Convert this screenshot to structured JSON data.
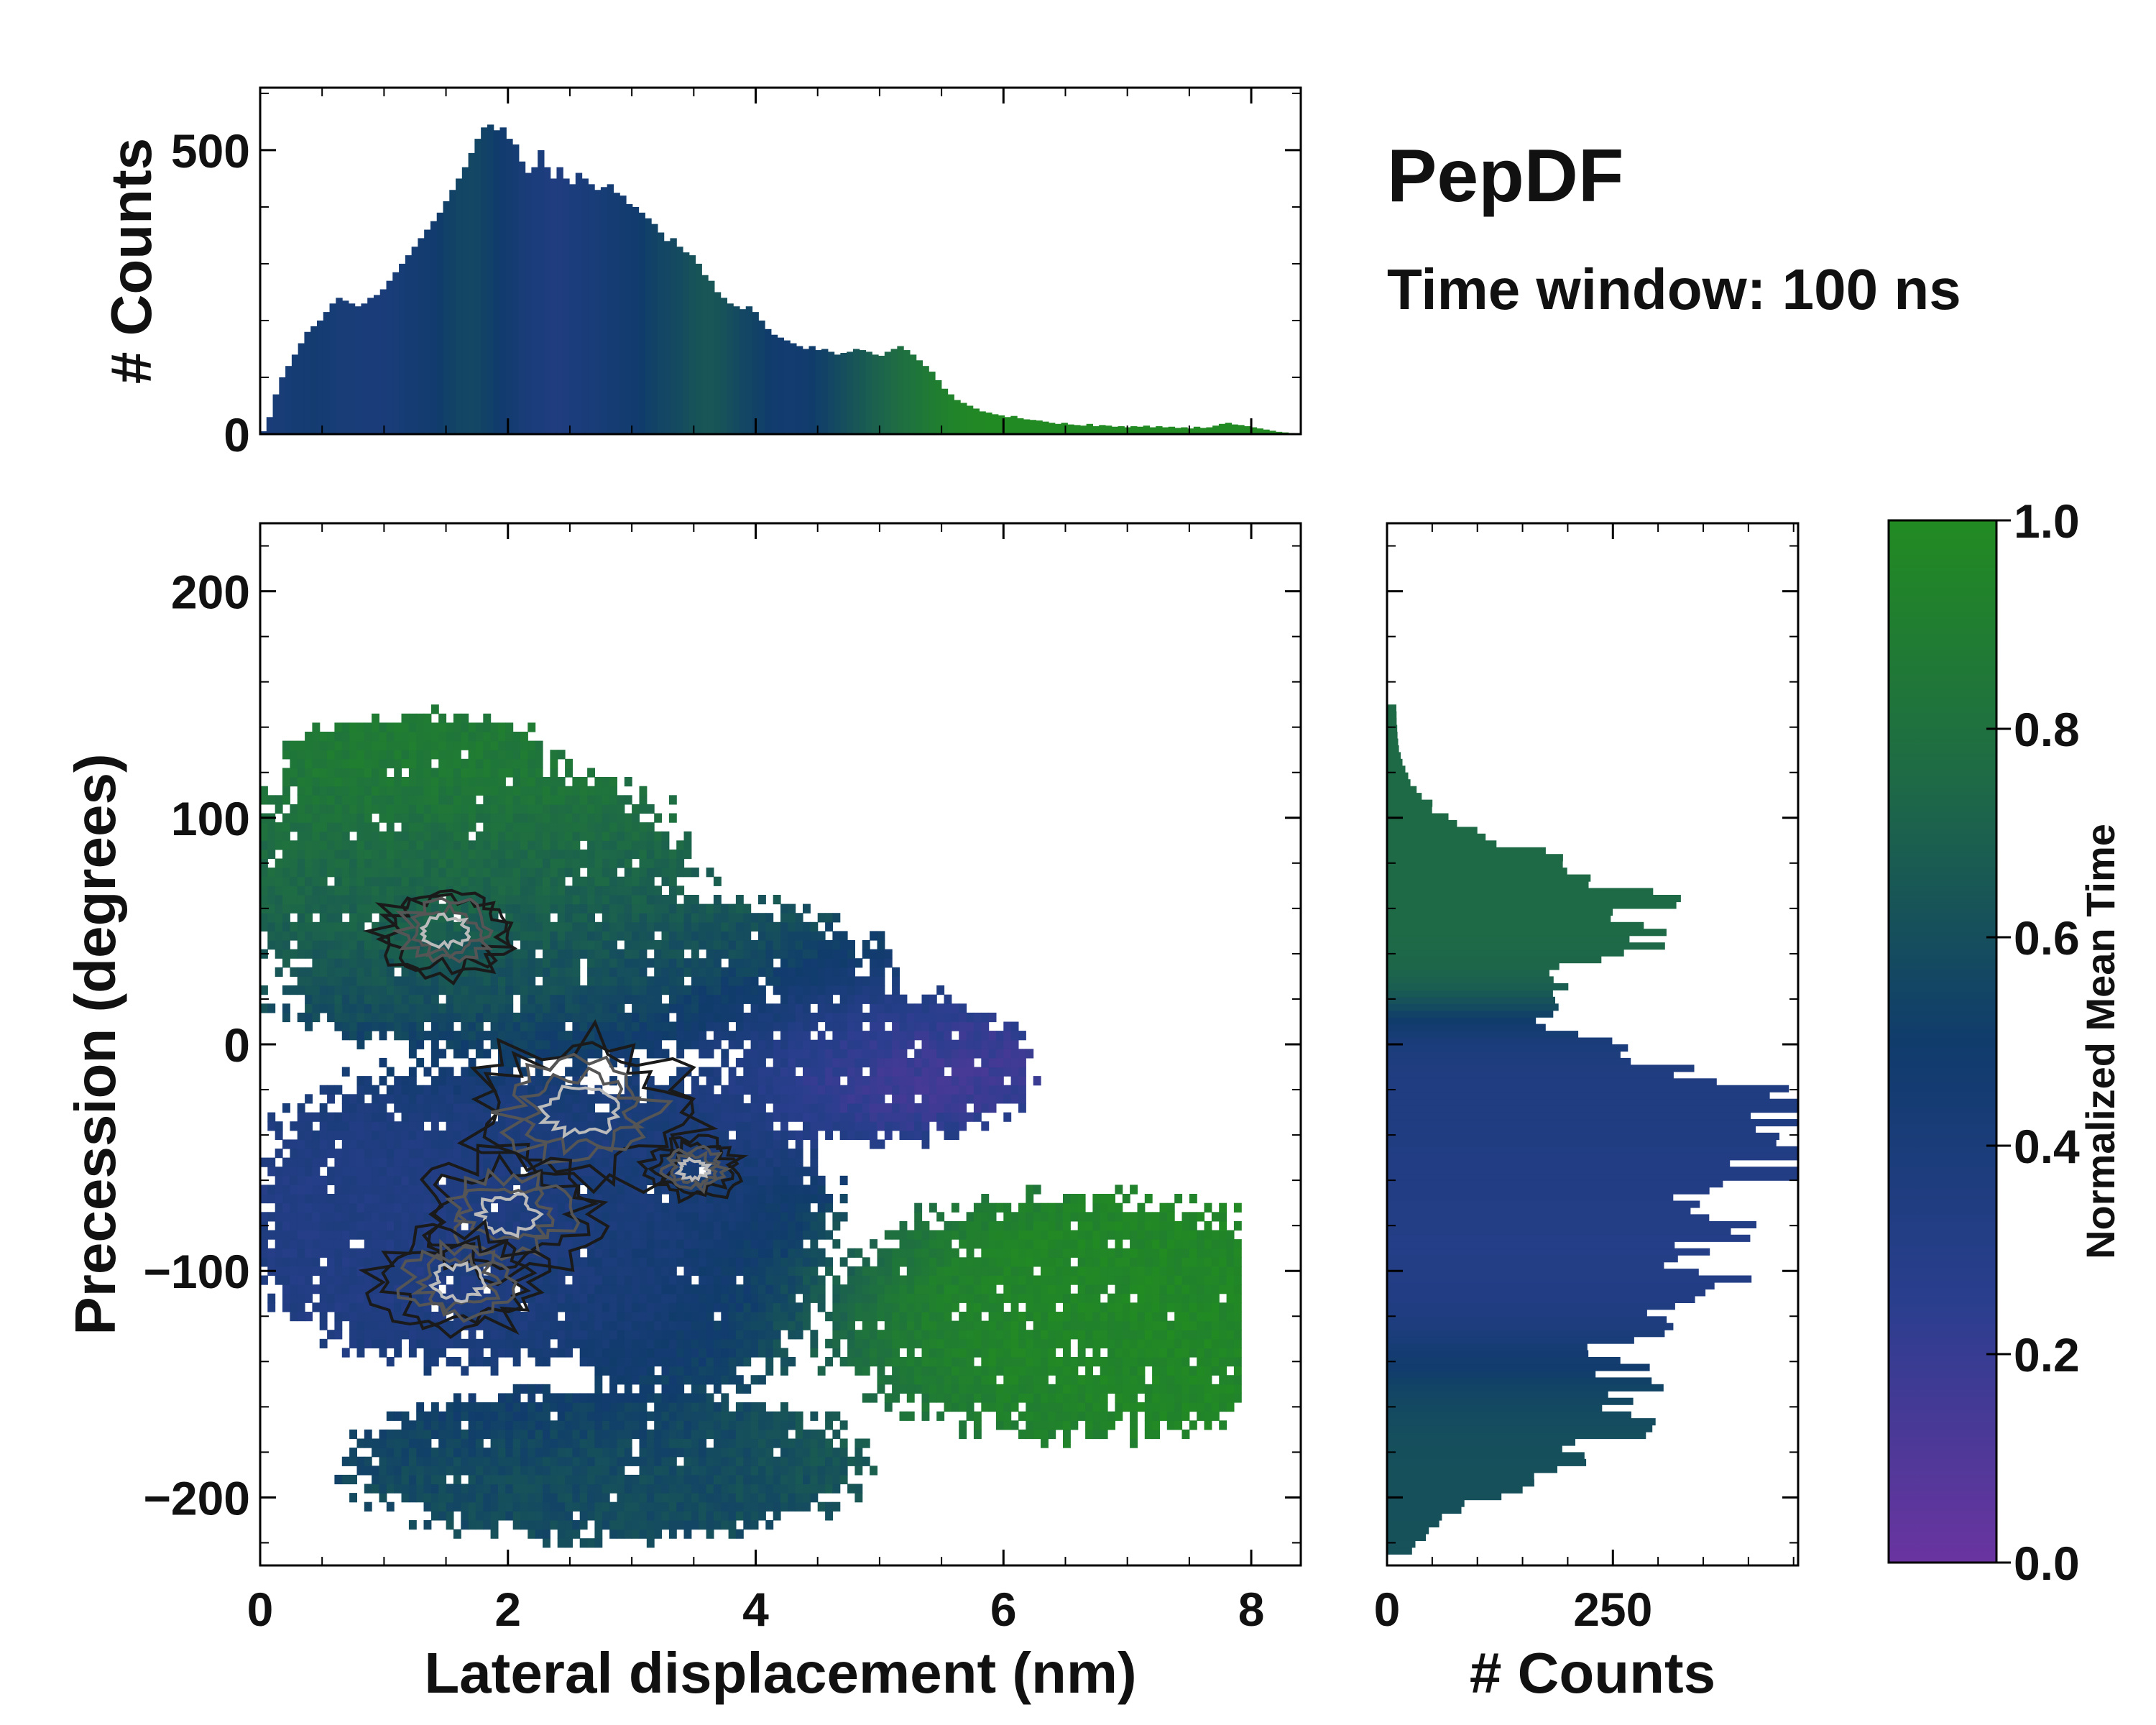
{
  "figure": {
    "title": "PepDF",
    "subtitle": "Time window: 100 ns"
  },
  "colors": {
    "colormap": [
      "#6a34a0",
      "#2a3e8e",
      "#103c6c",
      "#1e6a46",
      "#228b22"
    ],
    "contour_dark": "#1a1a1a",
    "contour_mid": "#555555",
    "contour_light": "#bbbbbb",
    "frame": "#000000"
  },
  "chart_data": [
    {
      "id": "top_histogram",
      "type": "bar",
      "xlabel": "",
      "ylabel": "# Counts",
      "xlim": [
        0,
        8.4
      ],
      "ylim": [
        0,
        610
      ],
      "yticks": [
        0,
        500
      ],
      "ytick_labels": [
        "0",
        "500"
      ],
      "bin_edges_range": [
        0,
        8.4
      ],
      "values": [
        5,
        30,
        70,
        100,
        120,
        140,
        160,
        180,
        190,
        200,
        215,
        230,
        240,
        235,
        230,
        225,
        230,
        240,
        245,
        255,
        270,
        285,
        300,
        315,
        330,
        345,
        360,
        375,
        390,
        410,
        430,
        450,
        470,
        495,
        520,
        540,
        545,
        535,
        540,
        520,
        510,
        480,
        460,
        470,
        500,
        470,
        450,
        470,
        450,
        440,
        460,
        450,
        440,
        430,
        435,
        440,
        425,
        420,
        405,
        400,
        390,
        380,
        370,
        355,
        340,
        345,
        330,
        320,
        315,
        300,
        280,
        270,
        250,
        240,
        230,
        225,
        220,
        225,
        215,
        200,
        185,
        175,
        170,
        165,
        160,
        155,
        150,
        155,
        148,
        150,
        145,
        140,
        143,
        145,
        150,
        148,
        145,
        140,
        138,
        145,
        150,
        155,
        148,
        140,
        130,
        120,
        110,
        95,
        80,
        70,
        60,
        55,
        50,
        45,
        40,
        38,
        35,
        33,
        30,
        32,
        28,
        26,
        25,
        24,
        22,
        20,
        18,
        20,
        17,
        16,
        15,
        18,
        14,
        16,
        15,
        13,
        14,
        12,
        14,
        13,
        15,
        12,
        14,
        12,
        13,
        11,
        12,
        10,
        13,
        11,
        12,
        15,
        18,
        20,
        17,
        16,
        14,
        12,
        10,
        8,
        6,
        4,
        3,
        2,
        1
      ],
      "mean_time": [
        0.4,
        0.4,
        0.42,
        0.42,
        0.43,
        0.44,
        0.45,
        0.45,
        0.46,
        0.45,
        0.44,
        0.43,
        0.42,
        0.42,
        0.42,
        0.41,
        0.4,
        0.4,
        0.4,
        0.4,
        0.41,
        0.42,
        0.43,
        0.44,
        0.45,
        0.46,
        0.47,
        0.48,
        0.5,
        0.52,
        0.54,
        0.55,
        0.55,
        0.56,
        0.55,
        0.54,
        0.52,
        0.5,
        0.48,
        0.46,
        0.44,
        0.42,
        0.4,
        0.39,
        0.38,
        0.37,
        0.36,
        0.36,
        0.37,
        0.38,
        0.39,
        0.4,
        0.41,
        0.42,
        0.43,
        0.44,
        0.45,
        0.46,
        0.47,
        0.48,
        0.5,
        0.52,
        0.54,
        0.55,
        0.56,
        0.57,
        0.58,
        0.6,
        0.62,
        0.63,
        0.64,
        0.64,
        0.63,
        0.62,
        0.6,
        0.58,
        0.56,
        0.55,
        0.54,
        0.52,
        0.5,
        0.49,
        0.48,
        0.47,
        0.47,
        0.48,
        0.49,
        0.5,
        0.52,
        0.54,
        0.56,
        0.58,
        0.6,
        0.62,
        0.64,
        0.66,
        0.68,
        0.7,
        0.72,
        0.74,
        0.76,
        0.78,
        0.8,
        0.82,
        0.84,
        0.86,
        0.88,
        0.9,
        0.92,
        0.94,
        0.95,
        0.96,
        0.97,
        0.98,
        0.98,
        0.99,
        0.99,
        0.99,
        0.99,
        0.99,
        0.99,
        0.99,
        0.99,
        0.99,
        0.99,
        0.99,
        0.99,
        0.99,
        0.99,
        0.99,
        0.99,
        0.99,
        0.99,
        0.99,
        0.99,
        0.99,
        0.99,
        0.99,
        0.99,
        0.99,
        0.99,
        0.99,
        0.99,
        0.99,
        0.99,
        0.99,
        0.99,
        0.99,
        0.99,
        0.99,
        0.99,
        0.99,
        0.99,
        0.99,
        0.99,
        0.99,
        0.99,
        0.99,
        0.99,
        0.99,
        0.99,
        0.99,
        0.99,
        0.99,
        0.99,
        0.99,
        0.99
      ]
    },
    {
      "id": "main_heatmap",
      "type": "heatmap",
      "xlabel": "Lateral displacement (nm)",
      "ylabel": "Precession (degrees)",
      "xlim": [
        0,
        8.4
      ],
      "ylim": [
        -230,
        230
      ],
      "xticks": [
        0,
        2,
        4,
        6,
        8
      ],
      "xtick_labels": [
        "0",
        "2",
        "4",
        "6",
        "8"
      ],
      "yticks": [
        -200,
        -100,
        0,
        100,
        200
      ],
      "ytick_labels": [
        "−200",
        "−100",
        "0",
        "100",
        "200"
      ],
      "colorbar_label": "Normalized Mean Time",
      "regions": [
        {
          "name": "upper-green",
          "cx": 1.6,
          "cy": 75,
          "rx": 2.0,
          "ry": 55,
          "t": 0.78
        },
        {
          "name": "top-left-cap",
          "cx": 1.3,
          "cy": 125,
          "rx": 1.2,
          "ry": 22,
          "t": 0.9
        },
        {
          "name": "middle-band",
          "cx": 2.6,
          "cy": 30,
          "rx": 2.6,
          "ry": 40,
          "t": 0.58
        },
        {
          "name": "purple-pocket",
          "cx": 5.0,
          "cy": -10,
          "rx": 1.3,
          "ry": 35,
          "t": 0.1
        },
        {
          "name": "lower-left-blue",
          "cx": 1.7,
          "cy": -75,
          "rx": 1.9,
          "ry": 70,
          "t": 0.33
        },
        {
          "name": "lower-mid-blue",
          "cx": 3.4,
          "cy": -85,
          "rx": 1.3,
          "ry": 75,
          "t": 0.44
        },
        {
          "name": "bottom-teal",
          "cx": 2.8,
          "cy": -185,
          "rx": 2.2,
          "ry": 35,
          "t": 0.6
        },
        {
          "name": "lower-right-green",
          "cx": 6.6,
          "cy": -120,
          "rx": 2.2,
          "ry": 55,
          "t": 0.96
        }
      ],
      "density_peaks": [
        {
          "x": 1.5,
          "y": 50,
          "w": 0.6
        },
        {
          "x": 2.6,
          "y": -30,
          "w": 1.0
        },
        {
          "x": 2.0,
          "y": -75,
          "w": 0.8
        },
        {
          "x": 1.6,
          "y": -105,
          "w": 0.7
        },
        {
          "x": 3.5,
          "y": -55,
          "w": 0.4
        }
      ]
    },
    {
      "id": "right_histogram",
      "type": "bar",
      "orientation": "horizontal",
      "xlabel": "# Counts",
      "ylabel": "",
      "xlim": [
        0,
        455
      ],
      "ylim": [
        -230,
        230
      ],
      "xticks": [
        0,
        250
      ],
      "xtick_labels": [
        "0",
        "250"
      ],
      "profile_peaks": [
        {
          "y": 55,
          "count": 290,
          "sigma": 25,
          "t": 0.75
        },
        {
          "y": -30,
          "count": 400,
          "sigma": 25,
          "t": 0.35
        },
        {
          "y": -95,
          "count": 345,
          "sigma": 35,
          "t": 0.3
        },
        {
          "y": -170,
          "count": 220,
          "sigma": 25,
          "t": 0.62
        }
      ],
      "profile_range": [
        -225,
        150
      ]
    },
    {
      "id": "colorbar",
      "type": "colorbar",
      "label": "Normalized Mean Time",
      "range": [
        0,
        1
      ],
      "ticks": [
        0.0,
        0.2,
        0.4,
        0.6,
        0.8,
        1.0
      ],
      "tick_labels": [
        "0.0",
        "0.2",
        "0.4",
        "0.6",
        "0.8",
        "1.0"
      ]
    }
  ]
}
